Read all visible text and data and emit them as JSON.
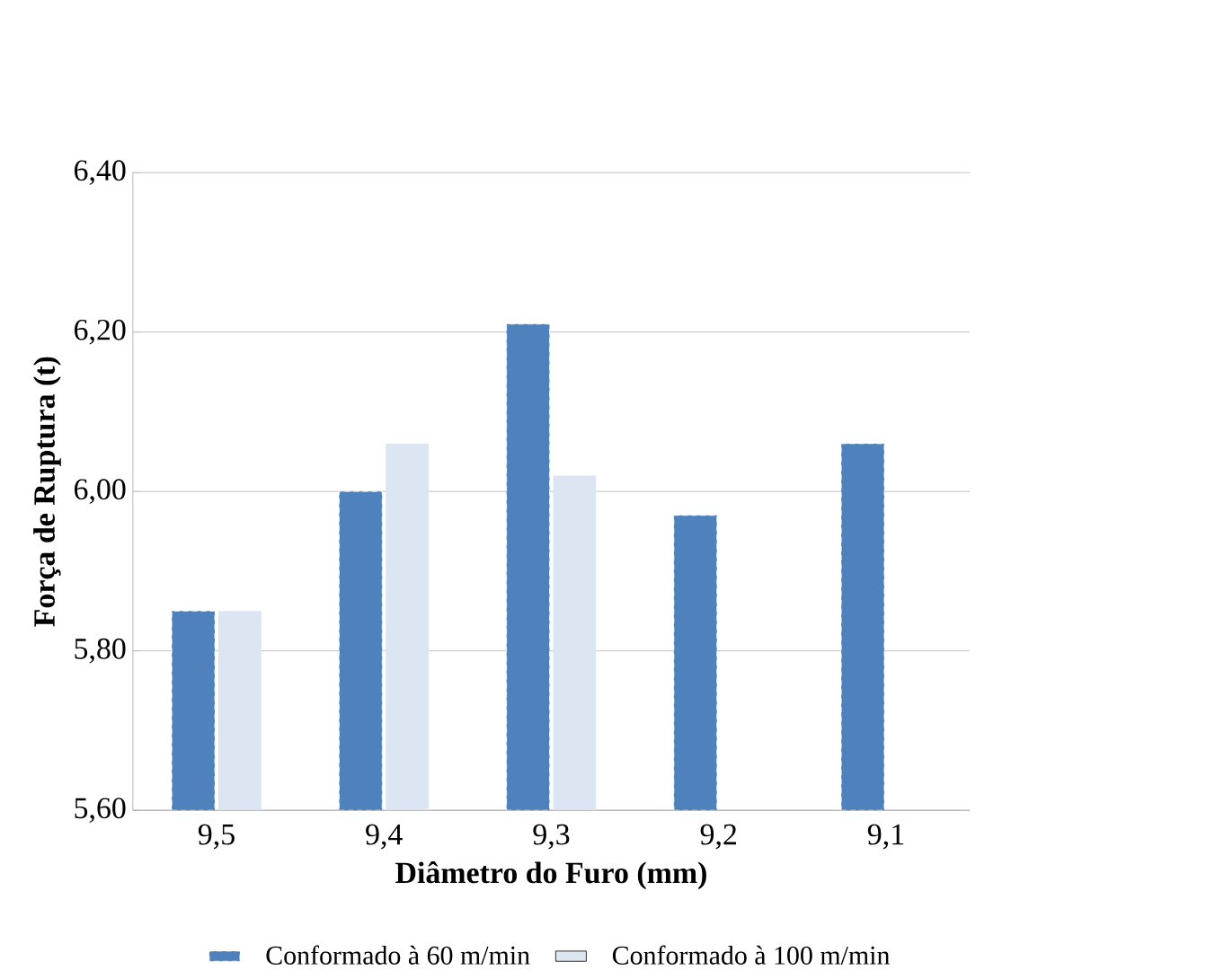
{
  "chart_data": {
    "type": "bar",
    "xlabel": "Diâmetro do Furo (mm)",
    "ylabel": "Força de Ruptura (t)",
    "categories": [
      "9,5",
      "9,4",
      "9,3",
      "9,2",
      "9,1"
    ],
    "series": [
      {
        "name": "Conformado à 60 m/min",
        "color": "#4f81bd",
        "values": [
          5.85,
          6.0,
          6.21,
          5.97,
          6.06
        ]
      },
      {
        "name": "Conformado à 100 m/min",
        "color": "#dce6f2",
        "values": [
          5.85,
          6.06,
          6.02,
          null,
          null
        ]
      }
    ],
    "ylim": [
      5.6,
      6.4
    ],
    "yticks": [
      {
        "value": 5.6,
        "label": "5,60"
      },
      {
        "value": 5.8,
        "label": "5,80"
      },
      {
        "value": 6.0,
        "label": "6,00"
      },
      {
        "value": 6.2,
        "label": "6,20"
      },
      {
        "value": 6.4,
        "label": "6,40"
      }
    ],
    "grid": "y",
    "legend": "bottom"
  }
}
